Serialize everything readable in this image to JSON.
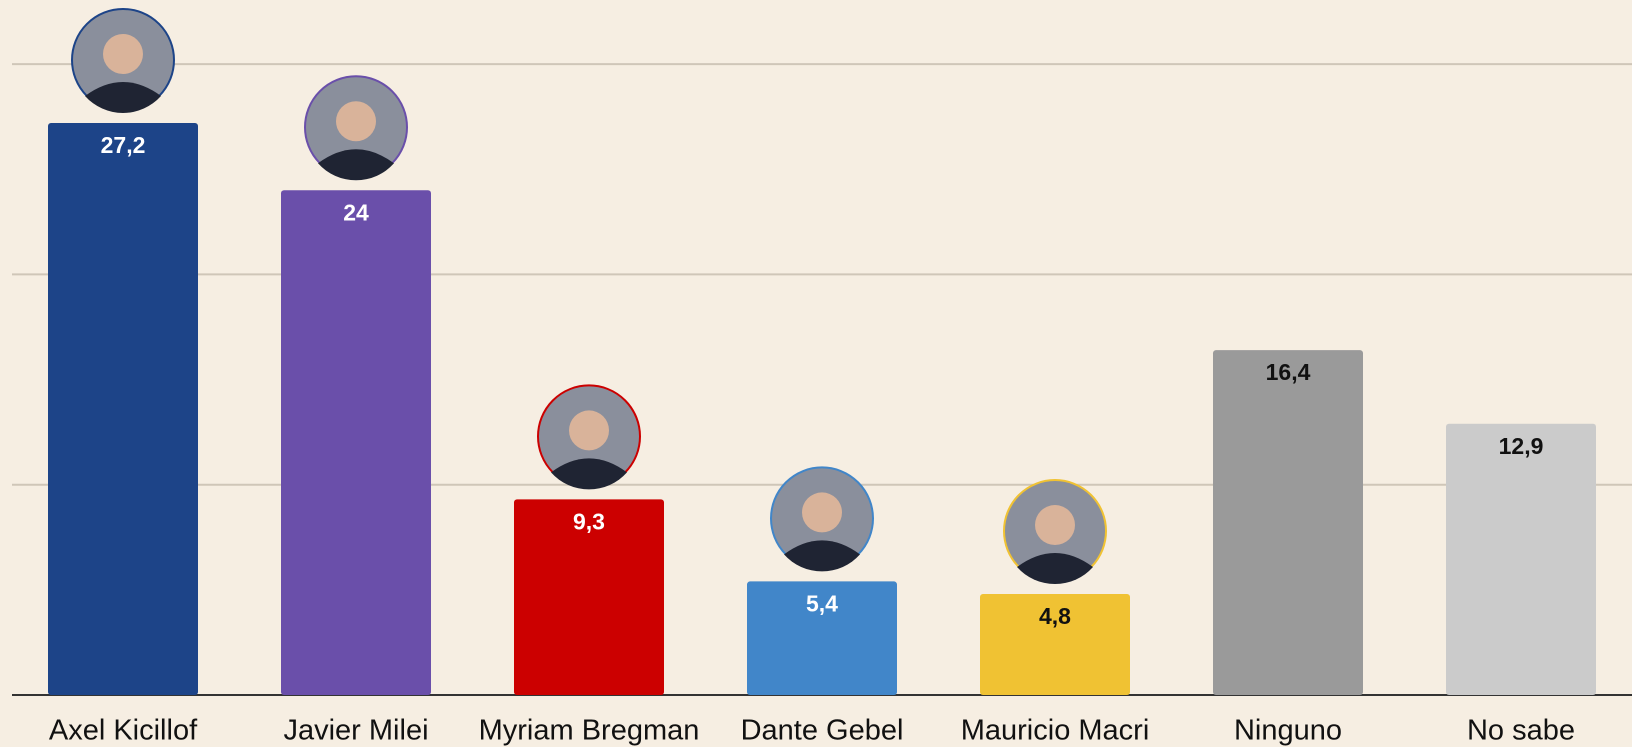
{
  "chart_data": {
    "type": "bar",
    "categories": [
      "Axel Kicillof",
      "Javier Milei",
      "Myriam Bregman",
      "Dante Gebel",
      "Mauricio Macri",
      "Ninguno",
      "No sabe"
    ],
    "values": [
      27.2,
      24,
      9.3,
      5.4,
      4.8,
      16.4,
      12.9
    ],
    "value_labels": [
      "27,2",
      "24",
      "9,3",
      "5,4",
      "4,8",
      "16,4",
      "12,9"
    ],
    "colors": [
      "#1d4488",
      "#6a4faa",
      "#cc0000",
      "#4186c9",
      "#f0c233",
      "#9a9a9a",
      "#cbcbcb"
    ],
    "ylim": [
      0,
      33
    ],
    "yticks": [
      0,
      10,
      20,
      30
    ],
    "grid": true
  }
}
